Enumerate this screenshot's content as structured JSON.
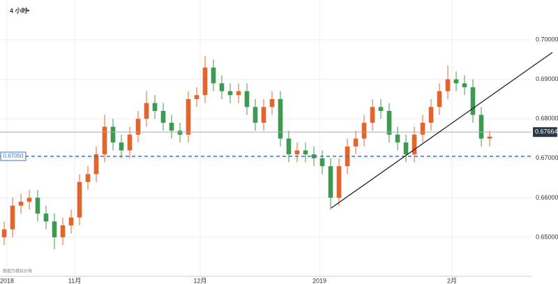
{
  "toolbar": {
    "timeframe": "4 小时"
  },
  "chart_data": {
    "type": "candlestick",
    "note": "数据为模拟价格",
    "up_color": "#e4642c",
    "down_color": "#3d9a50",
    "open": [
      0.65,
      0.652,
      0.658,
      0.659,
      0.66,
      0.656,
      0.654,
      0.65,
      0.653,
      0.655,
      0.664,
      0.666,
      0.671,
      0.678,
      0.674,
      0.672,
      0.676,
      0.68,
      0.684,
      0.682,
      0.679,
      0.677,
      0.676,
      0.685,
      0.686,
      0.693,
      0.689,
      0.687,
      0.686,
      0.687,
      0.683,
      0.679,
      0.683,
      0.685,
      0.675,
      0.671,
      0.672,
      0.671,
      0.67,
      0.668,
      0.66,
      0.668,
      0.673,
      0.675,
      0.679,
      0.683,
      0.682,
      0.676,
      0.674,
      0.671,
      0.676,
      0.679,
      0.683,
      0.687,
      0.69,
      0.689,
      0.688,
      0.681,
      0.675
    ],
    "high": [
      0.654,
      0.66,
      0.661,
      0.662,
      0.662,
      0.658,
      0.656,
      0.655,
      0.657,
      0.666,
      0.668,
      0.673,
      0.681,
      0.68,
      0.676,
      0.678,
      0.682,
      0.687,
      0.686,
      0.684,
      0.681,
      0.679,
      0.687,
      0.688,
      0.696,
      0.695,
      0.691,
      0.689,
      0.689,
      0.689,
      0.685,
      0.685,
      0.687,
      0.687,
      0.677,
      0.674,
      0.674,
      0.673,
      0.672,
      0.67,
      0.67,
      0.675,
      0.677,
      0.681,
      0.685,
      0.685,
      0.684,
      0.678,
      0.676,
      0.678,
      0.681,
      0.685,
      0.689,
      0.6935,
      0.692,
      0.691,
      0.69,
      0.683,
      0.677
    ],
    "low": [
      0.648,
      0.65,
      0.656,
      0.657,
      0.654,
      0.652,
      0.647,
      0.648,
      0.651,
      0.653,
      0.662,
      0.664,
      0.669,
      0.672,
      0.67,
      0.67,
      0.674,
      0.678,
      0.68,
      0.677,
      0.675,
      0.674,
      0.674,
      0.683,
      0.684,
      0.687,
      0.685,
      0.684,
      0.684,
      0.681,
      0.677,
      0.677,
      0.681,
      0.673,
      0.669,
      0.669,
      0.669,
      0.668,
      0.666,
      0.657,
      0.658,
      0.666,
      0.671,
      0.673,
      0.677,
      0.68,
      0.674,
      0.672,
      0.669,
      0.669,
      0.674,
      0.677,
      0.681,
      0.685,
      0.687,
      0.686,
      0.679,
      0.673,
      0.673
    ],
    "close": [
      0.652,
      0.658,
      0.659,
      0.66,
      0.656,
      0.654,
      0.65,
      0.653,
      0.655,
      0.664,
      0.666,
      0.671,
      0.678,
      0.674,
      0.672,
      0.676,
      0.68,
      0.684,
      0.682,
      0.679,
      0.677,
      0.676,
      0.685,
      0.686,
      0.693,
      0.689,
      0.687,
      0.686,
      0.687,
      0.683,
      0.679,
      0.683,
      0.685,
      0.675,
      0.671,
      0.672,
      0.671,
      0.67,
      0.668,
      0.66,
      0.668,
      0.673,
      0.675,
      0.679,
      0.683,
      0.682,
      0.676,
      0.674,
      0.671,
      0.676,
      0.679,
      0.683,
      0.687,
      0.69,
      0.689,
      0.688,
      0.681,
      0.675,
      0.6755
    ],
    "xlim": [
      -0.5,
      63
    ],
    "xticks": [
      {
        "value": 0.33,
        "label": "2018"
      },
      {
        "value": 8.42,
        "label": "11月"
      },
      {
        "value": 23.42,
        "label": "12月"
      },
      {
        "value": 37.67,
        "label": "2019"
      },
      {
        "value": 53.5,
        "label": "2月"
      }
    ],
    "ylim": [
      0.6401,
      0.7101
    ],
    "yticks": [
      {
        "value": 0.65,
        "label": "0.65000"
      },
      {
        "value": 0.66,
        "label": "0.66000"
      },
      {
        "value": 0.67,
        "label": "0.67000"
      },
      {
        "value": 0.68,
        "label": "0.68000"
      },
      {
        "value": 0.69,
        "label": "0.69000"
      },
      {
        "value": 0.7,
        "label": "0.70000"
      }
    ],
    "grid": true,
    "price_line": {
      "value": 0.67664,
      "label": "0.67664"
    },
    "level_line": {
      "value": 0.6705,
      "label": "0.67050",
      "color": "#3a6fc4"
    },
    "trendline": {
      "x": [
        39.08,
        65.5
      ],
      "y": [
        0.65742,
        0.69682
      ]
    }
  }
}
